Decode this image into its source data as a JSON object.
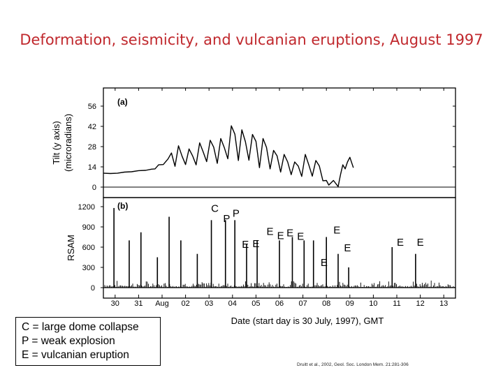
{
  "slide": {
    "title": "Deformation, seismicity, and vulcanian eruptions, August 1997",
    "citation": "Druitt et al., 2002, Geol. Soc. London Mem. 21:281-306"
  },
  "legend": {
    "items": [
      "C = large dome collapse",
      "P = weak explosion",
      "E = vulcanian eruption"
    ]
  },
  "chart_data": [
    {
      "panel": "(a)",
      "type": "line",
      "ylabel_line1": "Tilt (y axis)",
      "ylabel_line2": "(microradians)",
      "ylim": [
        0,
        60
      ],
      "yticks": [
        0,
        14,
        28,
        42,
        56
      ],
      "xlim": [
        0,
        15
      ],
      "series": [
        {
          "x": [
            0,
            0.3,
            0.6,
            0.9,
            1.2,
            1.5,
            1.8,
            2.05,
            2.2,
            2.35,
            2.55,
            2.75,
            2.9,
            3.05,
            3.2,
            3.35,
            3.5,
            3.65,
            3.8,
            3.95,
            4.1,
            4.25,
            4.4,
            4.55,
            4.7,
            4.85,
            5.0,
            5.15,
            5.3,
            5.45,
            5.6,
            5.75,
            5.9,
            6.05,
            6.2,
            6.35,
            6.5,
            6.65,
            6.8,
            6.95,
            7.1,
            7.25,
            7.4,
            7.55,
            7.7,
            7.85,
            8.0,
            8.15,
            8.3,
            8.45,
            8.6,
            8.75,
            8.9,
            9.05,
            9.2,
            9.35,
            9.5,
            9.6,
            9.8,
            10.0,
            10.1,
            10.2,
            10.3,
            10.4,
            10.5,
            10.65
          ],
          "y": [
            9,
            10,
            9,
            11,
            10,
            12,
            11,
            13,
            12,
            16,
            15,
            20,
            23,
            15,
            28,
            22,
            15,
            27,
            21,
            16,
            30,
            25,
            17,
            33,
            27,
            17,
            33,
            28,
            19,
            43,
            36,
            19,
            39,
            32,
            18,
            37,
            31,
            14,
            33,
            28,
            12,
            26,
            21,
            11,
            22,
            18,
            8,
            18,
            14,
            8,
            22,
            16,
            7,
            19,
            14,
            5,
            4,
            2,
            4,
            1,
            8,
            16,
            12,
            18,
            20,
            14
          ]
        }
      ]
    },
    {
      "panel": "(b)",
      "type": "bar",
      "ylabel": "RSAM",
      "ylim": [
        0,
        1300
      ],
      "yticks": [
        0,
        300,
        600,
        900,
        1200
      ],
      "xlim": [
        0,
        15
      ],
      "xlabel": "Date (start day is 30 July, 1997), GMT",
      "xtick_labels": [
        "30",
        "31",
        "Aug",
        "02",
        "03",
        "04",
        "05",
        "06",
        "07",
        "08",
        "09",
        "10",
        "11",
        "12",
        "13"
      ],
      "xtick_positions": [
        0.5,
        1.5,
        2.5,
        3.5,
        4.5,
        5.5,
        6.5,
        7.5,
        8.5,
        9.5,
        10.5,
        11.5,
        12.5,
        13.5,
        14.5
      ],
      "events": [
        {
          "x": 0.45,
          "value": 1180
        },
        {
          "x": 1.1,
          "value": 700
        },
        {
          "x": 1.6,
          "value": 820
        },
        {
          "x": 2.3,
          "value": 450
        },
        {
          "x": 2.8,
          "value": 1050
        },
        {
          "x": 3.3,
          "value": 700
        },
        {
          "x": 4.0,
          "value": 500
        },
        {
          "x": 4.6,
          "value": 1000
        },
        {
          "x": 5.2,
          "value": 1000
        },
        {
          "x": 5.6,
          "value": 1000
        },
        {
          "x": 6.1,
          "value": 650
        },
        {
          "x": 6.55,
          "value": 700
        },
        {
          "x": 7.5,
          "value": 700
        },
        {
          "x": 8.05,
          "value": 750
        },
        {
          "x": 8.55,
          "value": 700
        },
        {
          "x": 8.95,
          "value": 700
        },
        {
          "x": 9.5,
          "value": 750
        },
        {
          "x": 10.0,
          "value": 500
        },
        {
          "x": 10.45,
          "value": 300
        },
        {
          "x": 12.3,
          "value": 600
        },
        {
          "x": 13.3,
          "value": 500
        }
      ],
      "annotations": [
        {
          "label": "C",
          "x": 4.75,
          "value": 1120
        },
        {
          "label": "P",
          "x": 5.25,
          "value": 970
        },
        {
          "label": "P",
          "x": 5.65,
          "value": 1050
        },
        {
          "label": "E",
          "x": 6.05,
          "value": 590
        },
        {
          "label": "E",
          "x": 6.5,
          "value": 600
        },
        {
          "label": "E",
          "x": 7.1,
          "value": 780
        },
        {
          "label": "E",
          "x": 7.55,
          "value": 720
        },
        {
          "label": "E",
          "x": 7.95,
          "value": 760
        },
        {
          "label": "E",
          "x": 8.4,
          "value": 710
        },
        {
          "label": "E",
          "x": 9.4,
          "value": 320
        },
        {
          "label": "E",
          "x": 9.95,
          "value": 800
        },
        {
          "label": "E",
          "x": 10.4,
          "value": 540
        },
        {
          "label": "E",
          "x": 12.65,
          "value": 620
        },
        {
          "label": "E",
          "x": 13.5,
          "value": 620
        }
      ]
    }
  ]
}
